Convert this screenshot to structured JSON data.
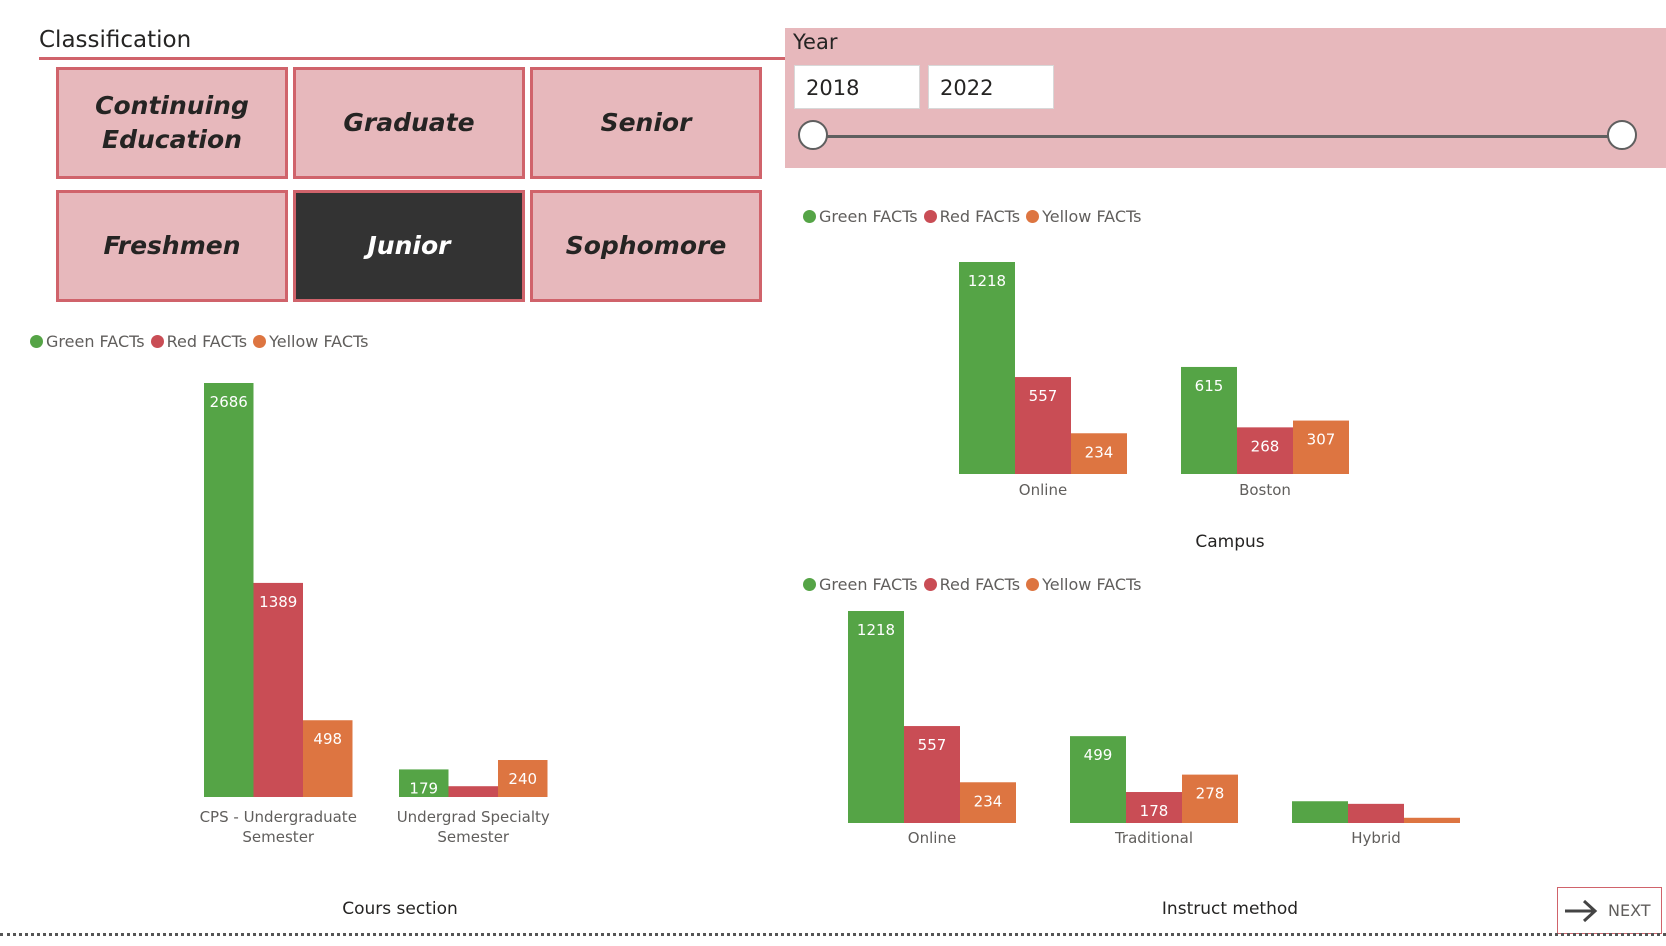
{
  "classification": {
    "title": "Classification",
    "tiles": [
      {
        "label": "Continuing Education",
        "active": false
      },
      {
        "label": "Graduate",
        "active": false
      },
      {
        "label": "Senior",
        "active": false
      },
      {
        "label": "Freshmen",
        "active": false
      },
      {
        "label": "Junior",
        "active": true
      },
      {
        "label": "Sophomore",
        "active": false
      }
    ]
  },
  "year_slicer": {
    "title": "Year",
    "start": "2018",
    "end": "2022"
  },
  "legend": {
    "items": [
      {
        "label": "Green FACTs",
        "color": "#55a446"
      },
      {
        "label": "Red FACTs",
        "color": "#c94d55"
      },
      {
        "label": "Yellow FACTs",
        "color": "#dd7541"
      }
    ]
  },
  "colors": {
    "green": "#55a446",
    "red": "#c94d55",
    "yellow": "#dd7541",
    "accent": "#d0636b",
    "panel": "#e7b8bc"
  },
  "chart_data": [
    {
      "type": "bar",
      "xlabel": "Cours section",
      "categories": [
        "CPS - Undergraduate Semester",
        "Undergrad Specialty Semester"
      ],
      "category_lines": [
        [
          "CPS - Undergraduate",
          "Semester"
        ],
        [
          "Undergrad Specialty",
          "Semester"
        ]
      ],
      "series": [
        {
          "name": "Green FACTs",
          "values": [
            2686,
            179
          ]
        },
        {
          "name": "Red FACTs",
          "values": [
            1389,
            70
          ]
        },
        {
          "name": "Yellow FACTs",
          "values": [
            498,
            240
          ]
        }
      ],
      "labels_shown": [
        [
          true,
          true
        ],
        [
          true,
          false
        ],
        [
          true,
          true
        ]
      ],
      "ylim": [
        0,
        2686
      ]
    },
    {
      "type": "bar",
      "xlabel": "Campus",
      "categories": [
        "Online",
        "Boston"
      ],
      "category_lines": [
        [
          "Online"
        ],
        [
          "Boston"
        ]
      ],
      "series": [
        {
          "name": "Green FACTs",
          "values": [
            1218,
            615
          ]
        },
        {
          "name": "Red FACTs",
          "values": [
            557,
            268
          ]
        },
        {
          "name": "Yellow FACTs",
          "values": [
            234,
            307
          ]
        }
      ],
      "labels_shown": [
        [
          true,
          true
        ],
        [
          true,
          true
        ],
        [
          true,
          true
        ]
      ],
      "ylim": [
        0,
        1218
      ]
    },
    {
      "type": "bar",
      "xlabel": "Instruct method",
      "categories": [
        "Online",
        "Traditional",
        "Hybrid"
      ],
      "category_lines": [
        [
          "Online"
        ],
        [
          "Traditional"
        ],
        [
          "Hybrid"
        ]
      ],
      "series": [
        {
          "name": "Green FACTs",
          "values": [
            1218,
            499,
            125
          ]
        },
        {
          "name": "Red FACTs",
          "values": [
            557,
            178,
            110
          ]
        },
        {
          "name": "Yellow FACTs",
          "values": [
            234,
            278,
            30
          ]
        }
      ],
      "labels_shown": [
        [
          true,
          true,
          false
        ],
        [
          true,
          true,
          false
        ],
        [
          true,
          true,
          false
        ]
      ],
      "ylim": [
        0,
        1218
      ]
    }
  ],
  "navigation": {
    "next_label": "NEXT"
  }
}
